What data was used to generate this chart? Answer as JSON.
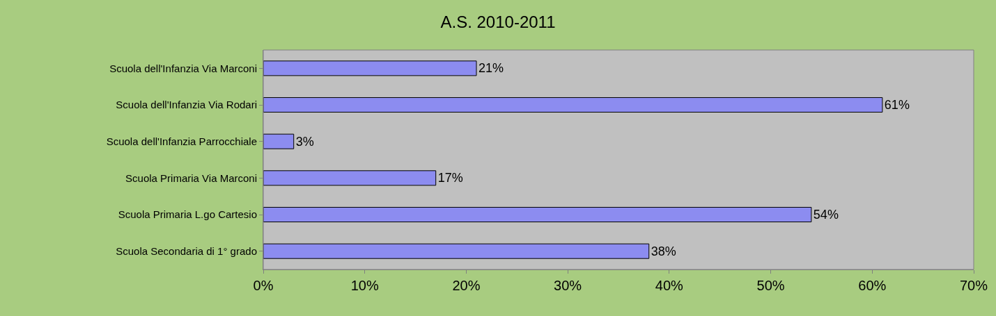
{
  "chart_data": {
    "type": "bar",
    "orientation": "horizontal",
    "title": "A.S. 2010-2011",
    "categories": [
      "Scuola dell'Infanzia Via Marconi",
      "Scuola dell'Infanzia Via Rodari",
      "Scuola dell'Infanzia Parrocchiale",
      "Scuola Primaria Via Marconi",
      "Scuola Primaria L.go Cartesio",
      "Scuola Secondaria di 1° grado"
    ],
    "values": [
      21,
      61,
      3,
      17,
      54,
      38
    ],
    "value_labels": [
      "21%",
      "61%",
      "3%",
      "17%",
      "54%",
      "38%"
    ],
    "color": "#8c8cf0",
    "xlim": [
      0,
      70
    ],
    "xticks": [
      {
        "value": 0,
        "label": "0%"
      },
      {
        "value": 10,
        "label": "10%"
      },
      {
        "value": 20,
        "label": "20%"
      },
      {
        "value": 30,
        "label": "30%"
      },
      {
        "value": 40,
        "label": "40%"
      },
      {
        "value": 50,
        "label": "50%"
      },
      {
        "value": 60,
        "label": "60%"
      },
      {
        "value": 70,
        "label": "70%"
      }
    ],
    "grid": false,
    "legend": false
  }
}
